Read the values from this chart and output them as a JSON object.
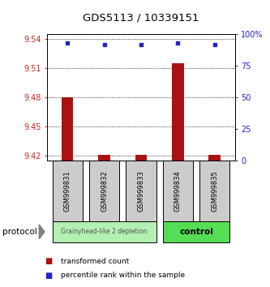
{
  "title": "GDS5113 / 10339151",
  "samples": [
    "GSM999831",
    "GSM999832",
    "GSM999833",
    "GSM999834",
    "GSM999835"
  ],
  "transformed_counts": [
    9.48,
    9.421,
    9.421,
    9.515,
    9.421
  ],
  "percentile_ranks": [
    93,
    92,
    92,
    93,
    92
  ],
  "ylim_left": [
    9.415,
    9.545
  ],
  "ylim_right": [
    0,
    100
  ],
  "yticks_left": [
    9.42,
    9.45,
    9.48,
    9.51,
    9.54
  ],
  "yticks_right": [
    0,
    25,
    50,
    75,
    100
  ],
  "ytick_labels_left": [
    "9.42",
    "9.45",
    "9.48",
    "9.51",
    "9.54"
  ],
  "ytick_labels_right": [
    "0",
    "25",
    "50",
    "75",
    "100%"
  ],
  "bar_color": "#aa1111",
  "dot_color": "#2222cc",
  "group1_samples": [
    0,
    1,
    2
  ],
  "group2_samples": [
    3,
    4
  ],
  "group1_label": "Grainyhead-like 2 depletion",
  "group2_label": "control",
  "group1_color": "#b3f0b3",
  "group2_color": "#55dd55",
  "protocol_label": "protocol",
  "legend_bar_label": "transformed count",
  "legend_dot_label": "percentile rank within the sample",
  "background_color": "#ffffff",
  "tick_color_left": "#cc2222",
  "tick_color_right": "#2222cc",
  "bar_bottom": 9.415,
  "box_color": "#cccccc"
}
